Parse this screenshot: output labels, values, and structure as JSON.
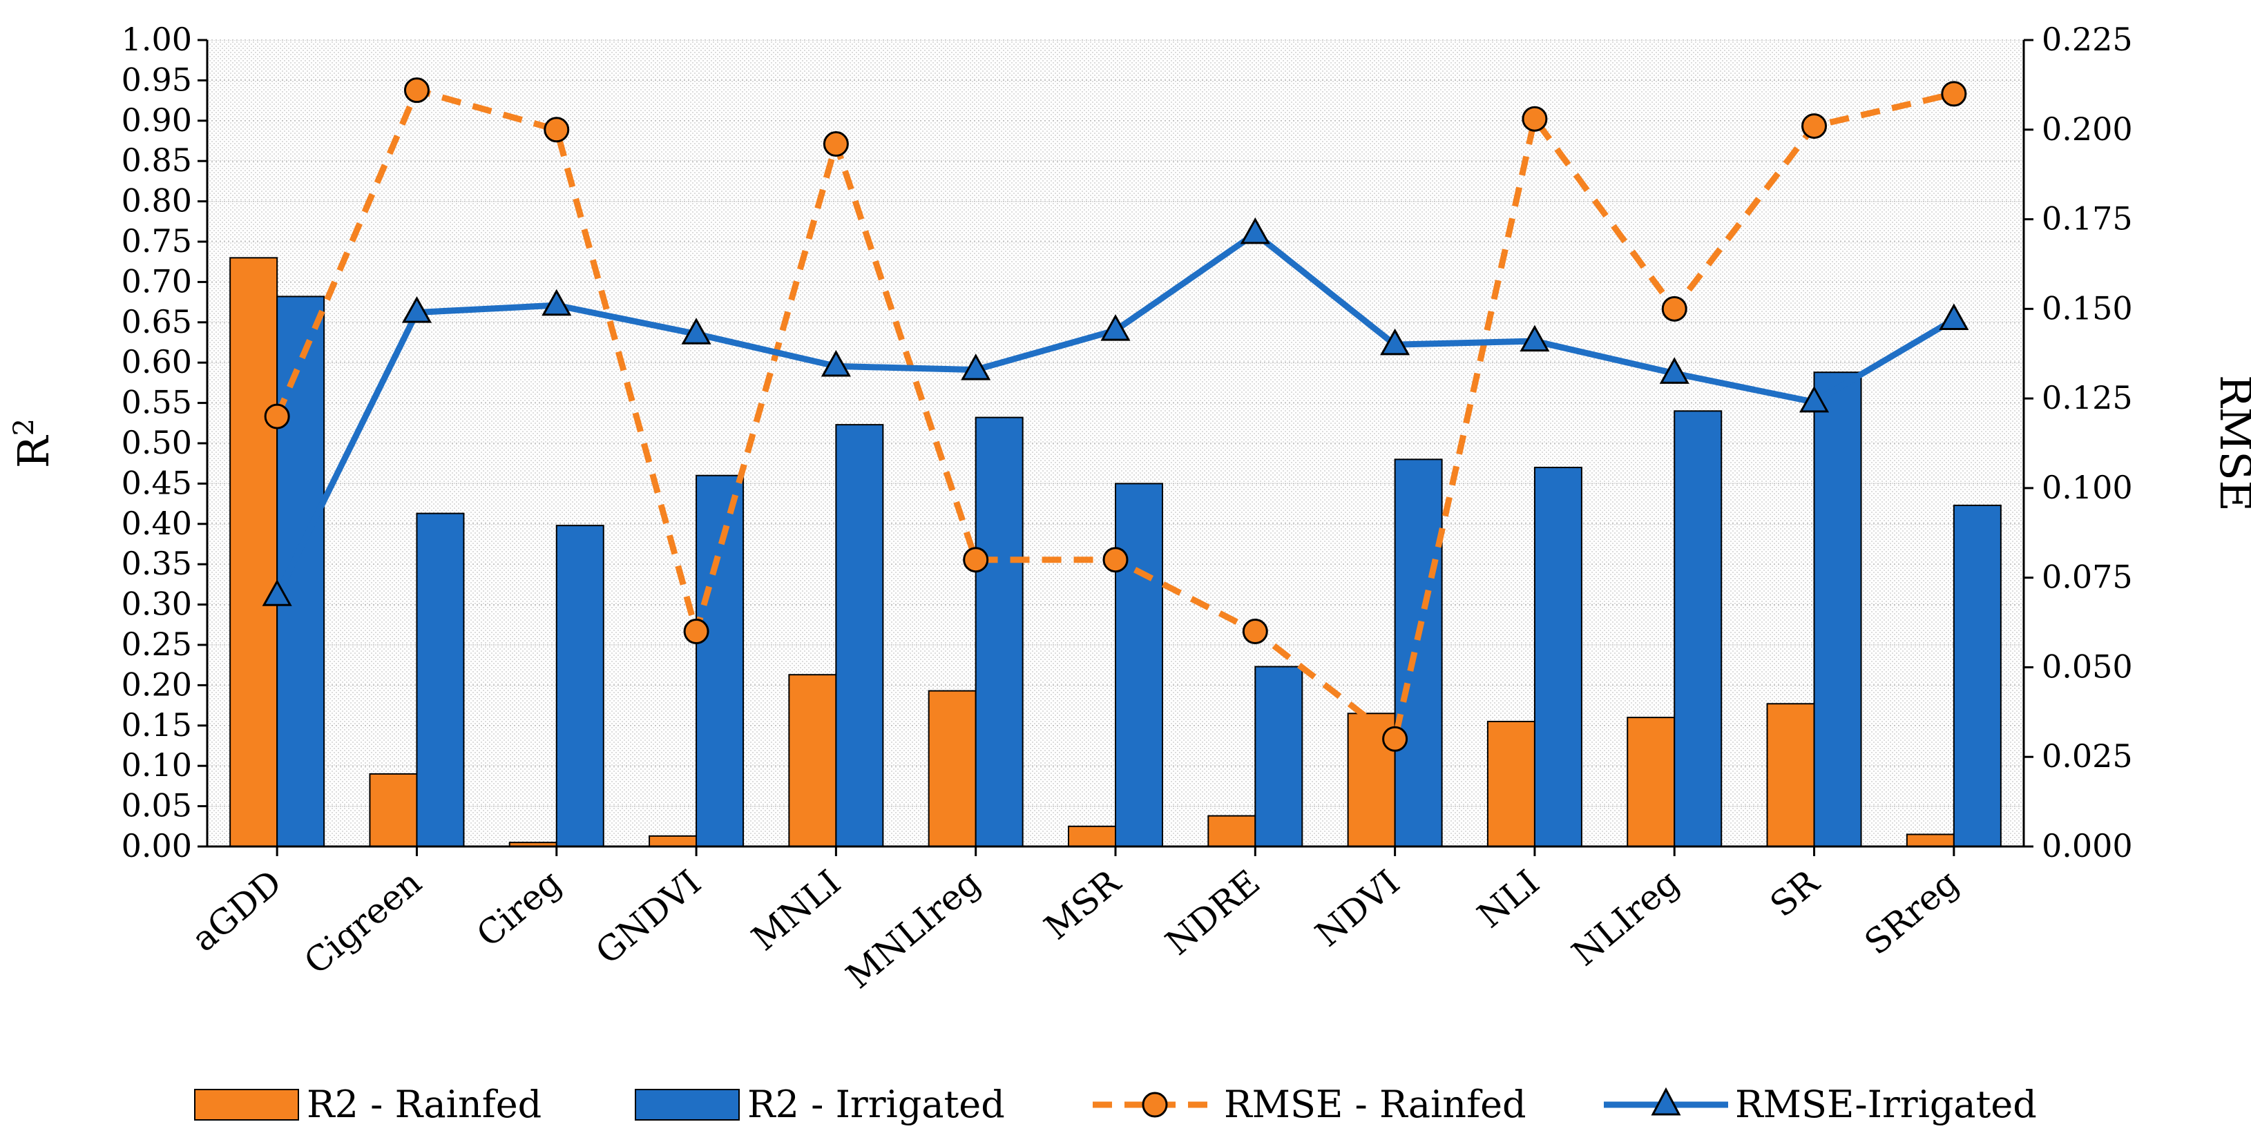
{
  "chart_data": {
    "type": "bar",
    "categories": [
      "aGDD",
      "Cigreen",
      "Cireg",
      "GNDVI",
      "MNLI",
      "MNLIreg",
      "MSR",
      "NDRE",
      "NDVI",
      "NLI",
      "NLIreg",
      "SR",
      "SRreg"
    ],
    "series": [
      {
        "name": "R2 - Rainfed",
        "kind": "bar",
        "axis": "left",
        "color": "#F58220",
        "values": [
          0.73,
          0.09,
          0.005,
          0.013,
          0.213,
          0.193,
          0.025,
          0.038,
          0.165,
          0.155,
          0.16,
          0.177,
          0.015
        ]
      },
      {
        "name": "R2 - Irrigated",
        "kind": "bar",
        "axis": "left",
        "color": "#1F6FC5",
        "values": [
          0.682,
          0.413,
          0.398,
          0.46,
          0.523,
          0.532,
          0.45,
          0.223,
          0.48,
          0.47,
          0.54,
          0.588,
          0.423
        ]
      },
      {
        "name": "RMSE - Rainfed",
        "kind": "line",
        "axis": "right",
        "color": "#F58220",
        "dashed": true,
        "marker": "circle",
        "values": [
          0.12,
          0.211,
          0.2,
          0.06,
          0.196,
          0.08,
          0.08,
          0.06,
          0.03,
          0.203,
          0.15,
          0.201,
          0.21
        ]
      },
      {
        "name": "RMSE-Irrigated",
        "kind": "line",
        "axis": "right",
        "color": "#1F6FC5",
        "dashed": false,
        "marker": "triangle",
        "values": [
          0.07,
          0.149,
          0.151,
          0.143,
          0.134,
          0.133,
          0.144,
          0.171,
          0.14,
          0.141,
          0.132,
          0.124,
          0.147
        ]
      }
    ],
    "ylabel_left": "R²",
    "ylabel_right": "RMSE",
    "ylim_left": [
      0,
      1.0
    ],
    "ylim_right": [
      0,
      0.225
    ],
    "yticks_left": [
      "0.00",
      "0.05",
      "0.10",
      "0.15",
      "0.20",
      "0.25",
      "0.30",
      "0.35",
      "0.40",
      "0.45",
      "0.50",
      "0.55",
      "0.60",
      "0.65",
      "0.70",
      "0.75",
      "0.80",
      "0.85",
      "0.90",
      "0.95",
      "1.00"
    ],
    "yticks_right": [
      "0.000",
      "0.025",
      "0.050",
      "0.075",
      "0.100",
      "0.125",
      "0.150",
      "0.175",
      "0.200",
      "0.225"
    ],
    "grid": true,
    "legend": "bottom"
  }
}
